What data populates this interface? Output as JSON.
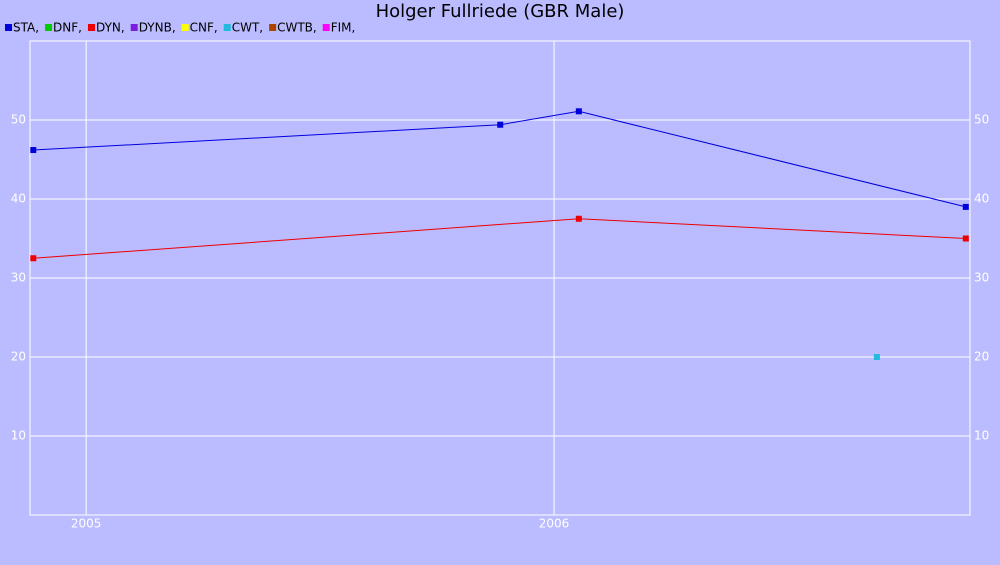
{
  "chart_data": {
    "type": "line",
    "title": "Holger Fullriede (GBR Male)",
    "xlim": [
      2004.88,
      2006.889
    ],
    "xticks": [
      2005,
      2006
    ],
    "ylim": [
      0,
      60
    ],
    "yticks": [
      10,
      20,
      30,
      40,
      50
    ],
    "grid": true,
    "series": [
      {
        "name": "STA,",
        "color": "#0000dd",
        "x": [
          2004.887,
          2005.885,
          2006.053,
          2006.88
        ],
        "values": [
          46.2,
          49.4,
          51.1,
          39.0
        ]
      },
      {
        "name": "DNF,",
        "color": "#00cc00",
        "x": [],
        "values": []
      },
      {
        "name": "DYN,",
        "color": "#ee0000",
        "x": [
          2004.887,
          2006.053,
          2006.88
        ],
        "values": [
          32.5,
          37.5,
          35.0
        ]
      },
      {
        "name": "DYNB,",
        "color": "#7a1fe0",
        "x": [],
        "values": []
      },
      {
        "name": "CNF,",
        "color": "#ffff00",
        "x": [],
        "values": []
      },
      {
        "name": "CWT,",
        "color": "#22bbdd",
        "x": [
          2006.69
        ],
        "values": [
          20
        ]
      },
      {
        "name": "CWTB,",
        "color": "#aa4400",
        "x": [],
        "values": []
      },
      {
        "name": "FIM,",
        "color": "#ff00ff",
        "x": [],
        "values": []
      }
    ]
  }
}
